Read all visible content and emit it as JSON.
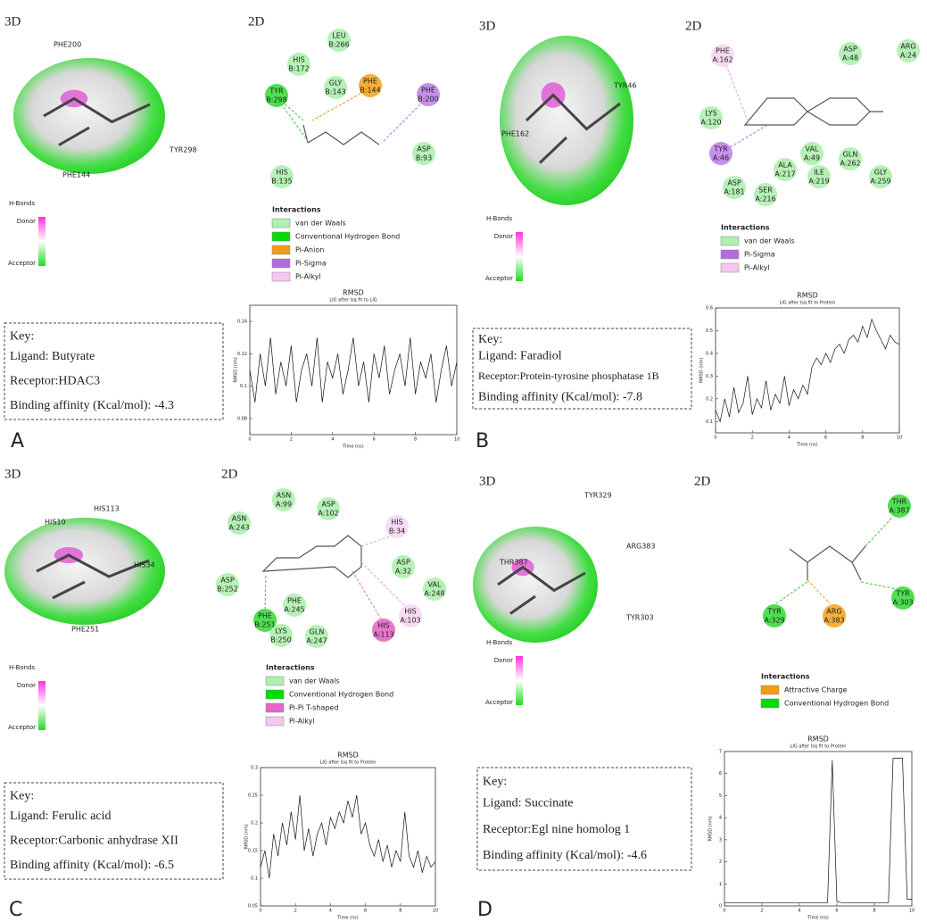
{
  "panels": [
    {
      "letter": "A",
      "label_3d": "3D",
      "label_2d": "2D",
      "residues_3d": [
        "PHE200",
        "TYR298",
        "PHE144"
      ],
      "hbonds": {
        "title": "H-Bonds",
        "donor": "Donor",
        "acceptor": "Acceptor"
      },
      "nodes": [
        {
          "residue": "LEU",
          "chain": "B:266",
          "color": "#aef0ae"
        },
        {
          "residue": "HIS",
          "chain": "B:172",
          "color": "#aef0ae"
        },
        {
          "residue": "GLY",
          "chain": "B:143",
          "color": "#aef0ae"
        },
        {
          "residue": "PHE",
          "chain": "B:144",
          "color": "#f5a623"
        },
        {
          "residue": "TYR",
          "chain": "B:298",
          "color": "#3ddc3d"
        },
        {
          "residue": "PHE",
          "chain": "B:200",
          "color": "#c084e8"
        },
        {
          "residue": "ASP",
          "chain": "B:93",
          "color": "#aef0ae"
        },
        {
          "residue": "HIS",
          "chain": "B:135",
          "color": "#aef0ae"
        }
      ],
      "interactions": {
        "title": "Interactions",
        "items": [
          {
            "name": "van der Waals",
            "color": "#aef0ae"
          },
          {
            "name": "Conventional Hydrogen Bond",
            "color": "#00dd00"
          },
          {
            "name": "Pi-Anion",
            "color": "#f39c12"
          },
          {
            "name": "Pi-Sigma",
            "color": "#b36be0"
          },
          {
            "name": "Pi-Alkyl",
            "color": "#f7c6f0"
          }
        ]
      },
      "rmsd": {
        "title": "RMSD",
        "subtitle": "LIG after lsq fit to LIG",
        "xlabel": "Time (ns)",
        "ylabel": "RMSD (nm)",
        "x": [
          0,
          0.25,
          0.5,
          0.75,
          1,
          1.25,
          1.5,
          1.75,
          2,
          2.25,
          2.5,
          2.75,
          3,
          3.25,
          3.5,
          3.75,
          4,
          4.25,
          4.5,
          4.75,
          5,
          5.25,
          5.5,
          5.75,
          6,
          6.25,
          6.5,
          6.75,
          7,
          7.25,
          7.5,
          7.75,
          8,
          8.25,
          8.5,
          8.75,
          9,
          9.25,
          9.5,
          9.75,
          10
        ],
        "values": [
          0.11,
          0.09,
          0.12,
          0.1,
          0.13,
          0.095,
          0.115,
          0.1,
          0.125,
          0.09,
          0.11,
          0.12,
          0.1,
          0.13,
          0.09,
          0.115,
          0.105,
          0.12,
          0.095,
          0.11,
          0.13,
          0.1,
          0.115,
          0.09,
          0.12,
          0.105,
          0.125,
          0.095,
          0.11,
          0.12,
          0.1,
          0.13,
          0.095,
          0.115,
          0.105,
          0.12,
          0.09,
          0.11,
          0.125,
          0.1,
          0.115
        ],
        "xlim": [
          0,
          10
        ],
        "ylim": [
          0.07,
          0.15
        ],
        "xticks": [
          0,
          2,
          4,
          6,
          8,
          10
        ],
        "yticks": [
          0.08,
          0.1,
          0.12,
          0.14
        ]
      },
      "key": {
        "title": "Key:",
        "ligand": "Ligand: Butyrate",
        "receptor": "Receptor:HDAC3",
        "affinity_label": "Binding affinity (Kcal/mol):",
        "affinity": -4.3
      }
    },
    {
      "letter": "B",
      "label_3d": "3D",
      "label_2d": "2D",
      "residues_3d": [
        "TYR46",
        "PHE162"
      ],
      "hbonds": {
        "title": "H-Bonds",
        "donor": "Donor",
        "acceptor": "Acceptor"
      },
      "nodes": [
        {
          "residue": "PHE",
          "chain": "A:162",
          "color": "#f7d6f3"
        },
        {
          "residue": "ASP",
          "chain": "A:48",
          "color": "#aef0ae"
        },
        {
          "residue": "ARG",
          "chain": "A:24",
          "color": "#aef0ae"
        },
        {
          "residue": "LYS",
          "chain": "A:120",
          "color": "#aef0ae"
        },
        {
          "residue": "TYR",
          "chain": "A:46",
          "color": "#c084e8"
        },
        {
          "residue": "VAL",
          "chain": "A:49",
          "color": "#aef0ae"
        },
        {
          "residue": "GLN",
          "chain": "A:262",
          "color": "#aef0ae"
        },
        {
          "residue": "ALA",
          "chain": "A:217",
          "color": "#aef0ae"
        },
        {
          "residue": "ILE",
          "chain": "A:219",
          "color": "#aef0ae"
        },
        {
          "residue": "GLY",
          "chain": "A:259",
          "color": "#aef0ae"
        },
        {
          "residue": "ASP",
          "chain": "A:181",
          "color": "#aef0ae"
        },
        {
          "residue": "SER",
          "chain": "A:216",
          "color": "#aef0ae"
        }
      ],
      "interactions": {
        "title": "Interactions",
        "items": [
          {
            "name": "van der Waals",
            "color": "#aef0ae"
          },
          {
            "name": "Pi-Sigma",
            "color": "#b36be0"
          },
          {
            "name": "Pi-Alkyl",
            "color": "#f7c6f0"
          }
        ]
      },
      "rmsd": {
        "title": "RMSD",
        "subtitle": "LIG after lsq fit to Protein",
        "xlabel": "Time (ns)",
        "ylabel": "RMSD (nm)",
        "x": [
          0,
          0.25,
          0.5,
          0.75,
          1,
          1.25,
          1.5,
          1.75,
          2,
          2.25,
          2.5,
          2.75,
          3,
          3.25,
          3.5,
          3.75,
          4,
          4.25,
          4.5,
          4.75,
          5,
          5.25,
          5.5,
          5.75,
          6,
          6.25,
          6.5,
          6.75,
          7,
          7.25,
          7.5,
          7.75,
          8,
          8.25,
          8.5,
          8.75,
          9,
          9.25,
          9.5,
          9.75,
          10
        ],
        "values": [
          0.15,
          0.1,
          0.2,
          0.12,
          0.25,
          0.14,
          0.18,
          0.3,
          0.13,
          0.2,
          0.16,
          0.28,
          0.15,
          0.22,
          0.18,
          0.3,
          0.17,
          0.24,
          0.2,
          0.26,
          0.22,
          0.34,
          0.38,
          0.35,
          0.4,
          0.36,
          0.42,
          0.44,
          0.4,
          0.46,
          0.48,
          0.45,
          0.52,
          0.47,
          0.55,
          0.5,
          0.46,
          0.42,
          0.48,
          0.45,
          0.44
        ],
        "xlim": [
          0,
          10
        ],
        "ylim": [
          0.05,
          0.6
        ],
        "xticks": [
          0,
          2,
          4,
          6,
          8,
          10
        ],
        "yticks": [
          0.1,
          0.2,
          0.3,
          0.4,
          0.5,
          0.6
        ]
      },
      "key": {
        "title": "Key:",
        "ligand": "Ligand: Faradiol",
        "receptor": "Receptor:Protein-tyrosine phosphatase 1B",
        "affinity_label": "Binding affinity (Kcal/mol):",
        "affinity": -7.8
      }
    },
    {
      "letter": "C",
      "label_3d": "3D",
      "label_2d": "2D",
      "residues_3d": [
        "HIS113",
        "HIS10",
        "HIS34",
        "PHE251"
      ],
      "hbonds": {
        "title": "H-Bonds",
        "donor": "Donor",
        "acceptor": "Acceptor"
      },
      "nodes": [
        {
          "residue": "ASN",
          "chain": "A:99",
          "color": "#aef0ae"
        },
        {
          "residue": "ASP",
          "chain": "A:102",
          "color": "#aef0ae"
        },
        {
          "residue": "ASN",
          "chain": "A:243",
          "color": "#aef0ae"
        },
        {
          "residue": "HIS",
          "chain": "B:34",
          "color": "#f7d6f3"
        },
        {
          "residue": "ASP",
          "chain": "A:32",
          "color": "#aef0ae"
        },
        {
          "residue": "VAL",
          "chain": "A:248",
          "color": "#aef0ae"
        },
        {
          "residue": "HIS",
          "chain": "A:103",
          "color": "#f7d6f3"
        },
        {
          "residue": "ASP",
          "chain": "B:252",
          "color": "#aef0ae"
        },
        {
          "residue": "PHE",
          "chain": "A:245",
          "color": "#aef0ae"
        },
        {
          "residue": "PHE",
          "chain": "B:251",
          "color": "#3ddc3d"
        },
        {
          "residue": "LYS",
          "chain": "B:250",
          "color": "#aef0ae"
        },
        {
          "residue": "GLN",
          "chain": "A:247",
          "color": "#aef0ae"
        },
        {
          "residue": "HIS",
          "chain": "A:113",
          "color": "#e667c8"
        }
      ],
      "interactions": {
        "title": "Interactions",
        "items": [
          {
            "name": "van der Waals",
            "color": "#aef0ae"
          },
          {
            "name": "Conventional Hydrogen Bond",
            "color": "#00dd00"
          },
          {
            "name": "Pi-Pi T-shaped",
            "color": "#e667c8"
          },
          {
            "name": "Pi-Alkyl",
            "color": "#f7c6f0"
          }
        ]
      },
      "rmsd": {
        "title": "RMSD",
        "subtitle": "LIG after lsq fit to Protein",
        "xlabel": "Time (ns)",
        "ylabel": "RMSD (nm)",
        "x": [
          0,
          0.25,
          0.5,
          0.75,
          1,
          1.25,
          1.5,
          1.75,
          2,
          2.25,
          2.5,
          2.75,
          3,
          3.25,
          3.5,
          3.75,
          4,
          4.25,
          4.5,
          4.75,
          5,
          5.25,
          5.5,
          5.75,
          6,
          6.25,
          6.5,
          6.75,
          7,
          7.25,
          7.5,
          7.75,
          8,
          8.25,
          8.5,
          8.75,
          9,
          9.25,
          9.5,
          9.75,
          10
        ],
        "values": [
          0.12,
          0.15,
          0.1,
          0.18,
          0.14,
          0.2,
          0.16,
          0.22,
          0.17,
          0.25,
          0.15,
          0.19,
          0.14,
          0.18,
          0.2,
          0.16,
          0.21,
          0.19,
          0.22,
          0.2,
          0.24,
          0.21,
          0.25,
          0.18,
          0.2,
          0.16,
          0.14,
          0.17,
          0.13,
          0.16,
          0.12,
          0.15,
          0.13,
          0.22,
          0.14,
          0.12,
          0.15,
          0.11,
          0.14,
          0.12,
          0.13
        ],
        "xlim": [
          0,
          10
        ],
        "ylim": [
          0.05,
          0.3
        ],
        "xticks": [
          0,
          2,
          4,
          6,
          8,
          10
        ],
        "yticks": [
          0.05,
          0.1,
          0.15,
          0.2,
          0.25,
          0.3
        ]
      },
      "key": {
        "title": "Key:",
        "ligand": "Ligand: Ferulic acid",
        "receptor": "Receptor:Carbonic anhydrase XII",
        "affinity_label": "Binding affinity (Kcal/mol):",
        "affinity": -6.5
      }
    },
    {
      "letter": "D",
      "label_3d": "3D",
      "label_2d": "2D",
      "residues_3d": [
        "TYR329",
        "ARG383",
        "THR387",
        "TYR303"
      ],
      "hbonds": {
        "title": "H-Bonds",
        "donor": "Donor",
        "acceptor": "Acceptor"
      },
      "nodes": [
        {
          "residue": "THR",
          "chain": "A:387",
          "color": "#3ddc3d"
        },
        {
          "residue": "TYR",
          "chain": "A:329",
          "color": "#3ddc3d"
        },
        {
          "residue": "ARG",
          "chain": "A:383",
          "color": "#f5a623"
        },
        {
          "residue": "TYR",
          "chain": "A:303",
          "color": "#3ddc3d"
        }
      ],
      "interactions": {
        "title": "Interactions",
        "items": [
          {
            "name": "Attractive Charge",
            "color": "#f39c12"
          },
          {
            "name": "Conventional Hydrogen Bond",
            "color": "#00dd00"
          }
        ]
      },
      "rmsd": {
        "title": "RMSD",
        "subtitle": "LIG after lsq fit to Protein",
        "xlabel": "Time (ns)",
        "ylabel": "RMSD (nm)",
        "x": [
          0,
          0.25,
          0.5,
          0.75,
          1,
          1.25,
          1.5,
          1.75,
          2,
          2.25,
          2.5,
          2.75,
          3,
          3.25,
          3.5,
          3.75,
          4,
          4.25,
          4.5,
          4.75,
          5,
          5.25,
          5.5,
          5.75,
          6,
          6.25,
          6.5,
          6.75,
          7,
          7.25,
          7.5,
          7.75,
          8,
          8.25,
          8.5,
          8.75,
          9,
          9.25,
          9.5,
          9.75,
          10
        ],
        "values": [
          0.15,
          0.15,
          0.15,
          0.15,
          0.15,
          0.15,
          0.15,
          0.15,
          0.15,
          0.15,
          0.15,
          0.15,
          0.15,
          0.15,
          0.15,
          0.15,
          0.15,
          0.15,
          0.15,
          0.15,
          0.15,
          0.15,
          0.15,
          6.6,
          0.2,
          0.15,
          0.15,
          0.15,
          0.15,
          0.15,
          0.15,
          0.15,
          0.15,
          0.15,
          0.15,
          0.15,
          6.7,
          6.7,
          6.7,
          0.3,
          0.3
        ],
        "xlim": [
          0,
          10
        ],
        "ylim": [
          0,
          7
        ],
        "xticks": [
          0,
          2,
          4,
          6,
          8,
          10
        ],
        "yticks": [
          0,
          1,
          2,
          3,
          4,
          5,
          6,
          7
        ]
      },
      "key": {
        "title": "Key:",
        "ligand": "Ligand: Succinate",
        "receptor": "Receptor:Egl nine homolog 1",
        "affinity_label": "Binding affinity (Kcal/mol):",
        "affinity": -4.6
      }
    }
  ]
}
